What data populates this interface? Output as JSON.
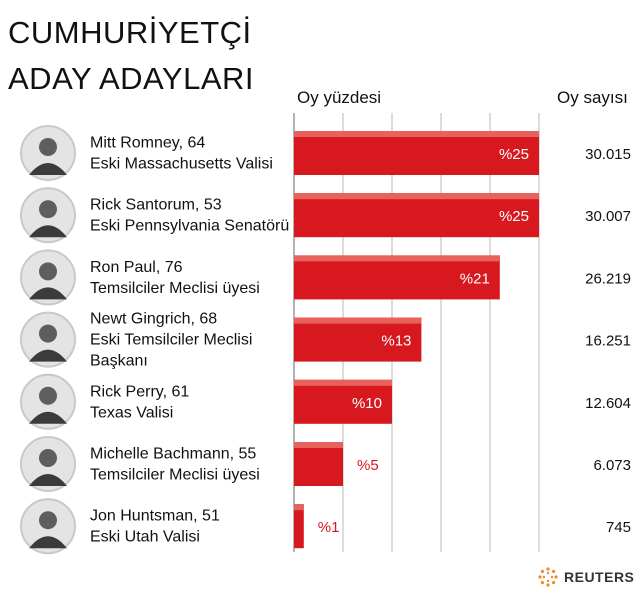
{
  "title_line1": "CUMHURİYETÇİ",
  "title_line2": "ADAY ADAYLARI",
  "column_headers": {
    "percent": "Oy yüzdesi",
    "votes": "Oy sayısı"
  },
  "brand": {
    "name": "REUTERS"
  },
  "colors": {
    "bar": "#d7191f",
    "bar_highlight": "#e8625d",
    "grid": "#b9b9b9",
    "label_outside": "#d7191f"
  },
  "chart_data": {
    "type": "bar",
    "orientation": "horizontal",
    "title": "CUMHURİYETÇİ ADAY ADAYLARI",
    "xlabel": "Oy yüzdesi",
    "value_unit": "%",
    "xlim": [
      0,
      25
    ],
    "grid": true,
    "categories": [
      "Mitt Romney",
      "Rick Santorum",
      "Ron Paul",
      "Newt Gingrich",
      "Rick Perry",
      "Michelle Bachmann",
      "Jon Huntsman"
    ],
    "candidates": [
      {
        "name": "Mitt Romney, 64",
        "title": [
          "Eski Massachusetts Valisi"
        ],
        "percent": 25,
        "percent_label": "%25",
        "votes": 30015,
        "votes_label": "30.015"
      },
      {
        "name": "Rick Santorum, 53",
        "title": [
          "Eski Pennsylvania Senatörü"
        ],
        "percent": 25,
        "percent_label": "%25",
        "votes": 30007,
        "votes_label": "30.007"
      },
      {
        "name": "Ron Paul, 76",
        "title": [
          "Temsilciler Meclisi üyesi"
        ],
        "percent": 21,
        "percent_label": "%21",
        "votes": 26219,
        "votes_label": "26.219"
      },
      {
        "name": "Newt Gingrich, 68",
        "title": [
          "Eski Temsilciler Meclisi",
          "Başkanı"
        ],
        "percent": 13,
        "percent_label": "%13",
        "votes": 16251,
        "votes_label": "16.251"
      },
      {
        "name": "Rick Perry, 61",
        "title": [
          "Texas Valisi"
        ],
        "percent": 10,
        "percent_label": "%10",
        "votes": 12604,
        "votes_label": "12.604"
      },
      {
        "name": "Michelle Bachmann, 55",
        "title": [
          "Temsilciler Meclisi üyesi"
        ],
        "percent": 5,
        "percent_label": "%5",
        "votes": 6073,
        "votes_label": "6.073"
      },
      {
        "name": "Jon Huntsman, 51",
        "title": [
          "Eski Utah Valisi"
        ],
        "percent": 1,
        "percent_label": "%1",
        "votes": 745,
        "votes_label": "745"
      }
    ]
  }
}
